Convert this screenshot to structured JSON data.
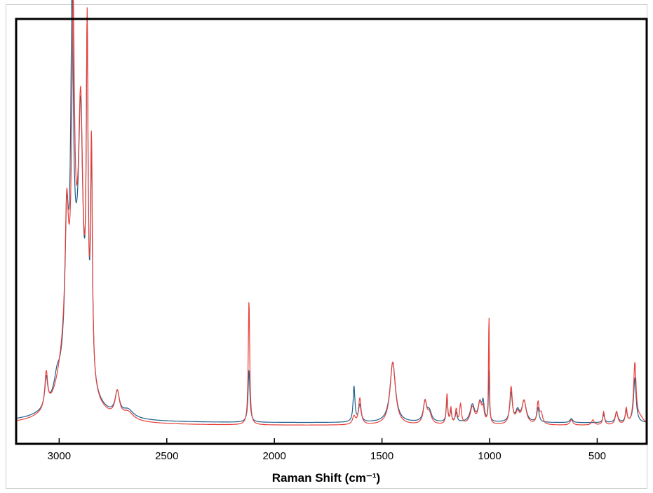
{
  "chart_data": {
    "type": "line",
    "title": "",
    "xlabel": "Raman Shift (cm⁻¹)",
    "ylabel": "",
    "xlim": [
      3200,
      270
    ],
    "ylim": [
      -1.4,
      31
    ],
    "xticks": [
      3000,
      2500,
      2000,
      1500,
      1000,
      500
    ],
    "xtick_labels": [
      "3000",
      "2500",
      "2000",
      "1500",
      "1000",
      "500"
    ],
    "grid": false,
    "legend": "none",
    "series": [
      {
        "color": "#e8403a",
        "baseline": 0,
        "peaks": [
          [
            3060,
            2.7,
            8
          ],
          [
            2990,
            1.0,
            30
          ],
          [
            2965,
            9.5,
            9
          ],
          [
            2935,
            20.0,
            7
          ],
          [
            2900,
            17.0,
            12
          ],
          [
            2870,
            24.5,
            5
          ],
          [
            2850,
            17.5,
            5
          ],
          [
            2930,
            10.0,
            45
          ],
          [
            2730,
            1.9,
            12
          ],
          [
            2680,
            0.6,
            30
          ],
          [
            2118,
            9.5,
            4
          ],
          [
            1630,
            0.6,
            8
          ],
          [
            1603,
            2.0,
            7
          ],
          [
            1450,
            4.8,
            15
          ],
          [
            1300,
            1.7,
            9
          ],
          [
            1280,
            0.8,
            12
          ],
          [
            1198,
            2.3,
            4
          ],
          [
            1180,
            1.2,
            4
          ],
          [
            1155,
            1.1,
            5
          ],
          [
            1135,
            1.5,
            5
          ],
          [
            1080,
            1.3,
            12
          ],
          [
            1045,
            1.6,
            10
          ],
          [
            1030,
            1.0,
            6
          ],
          [
            1003,
            8.4,
            2.2
          ],
          [
            900,
            2.8,
            7
          ],
          [
            870,
            0.8,
            10
          ],
          [
            840,
            1.8,
            12
          ],
          [
            775,
            1.6,
            6
          ],
          [
            760,
            0.8,
            8
          ],
          [
            620,
            0.4,
            8
          ],
          [
            520,
            0.4,
            7
          ],
          [
            470,
            1.0,
            5
          ],
          [
            410,
            1.0,
            7
          ],
          [
            365,
            1.2,
            5
          ],
          [
            325,
            4.6,
            7
          ],
          [
            300,
            0.5,
            20
          ]
        ]
      },
      {
        "color": "#1f5f8b",
        "baseline": 0.2,
        "peaks": [
          [
            3060,
            2.2,
            8
          ],
          [
            3010,
            1.2,
            15
          ],
          [
            2965,
            9.0,
            9
          ],
          [
            2940,
            21.5,
            7
          ],
          [
            2900,
            16.5,
            12
          ],
          [
            2870,
            24.0,
            5
          ],
          [
            2850,
            16.5,
            5
          ],
          [
            2930,
            9.8,
            45
          ],
          [
            2730,
            1.7,
            12
          ],
          [
            2680,
            0.6,
            30
          ],
          [
            2118,
            4.0,
            5
          ],
          [
            1630,
            2.7,
            5
          ],
          [
            1603,
            1.3,
            7
          ],
          [
            1450,
            4.6,
            15
          ],
          [
            1300,
            1.5,
            9
          ],
          [
            1280,
            0.8,
            12
          ],
          [
            1198,
            1.8,
            4
          ],
          [
            1180,
            0.8,
            4
          ],
          [
            1155,
            0.7,
            5
          ],
          [
            1080,
            1.3,
            12
          ],
          [
            1045,
            1.4,
            10
          ],
          [
            1030,
            1.3,
            6
          ],
          [
            1003,
            4.0,
            2.5
          ],
          [
            900,
            2.2,
            7
          ],
          [
            870,
            0.8,
            10
          ],
          [
            840,
            1.6,
            12
          ],
          [
            775,
            1.1,
            6
          ],
          [
            620,
            0.3,
            8
          ],
          [
            470,
            0.6,
            5
          ],
          [
            410,
            0.8,
            7
          ],
          [
            365,
            0.9,
            5
          ],
          [
            325,
            3.4,
            7
          ]
        ]
      }
    ]
  }
}
